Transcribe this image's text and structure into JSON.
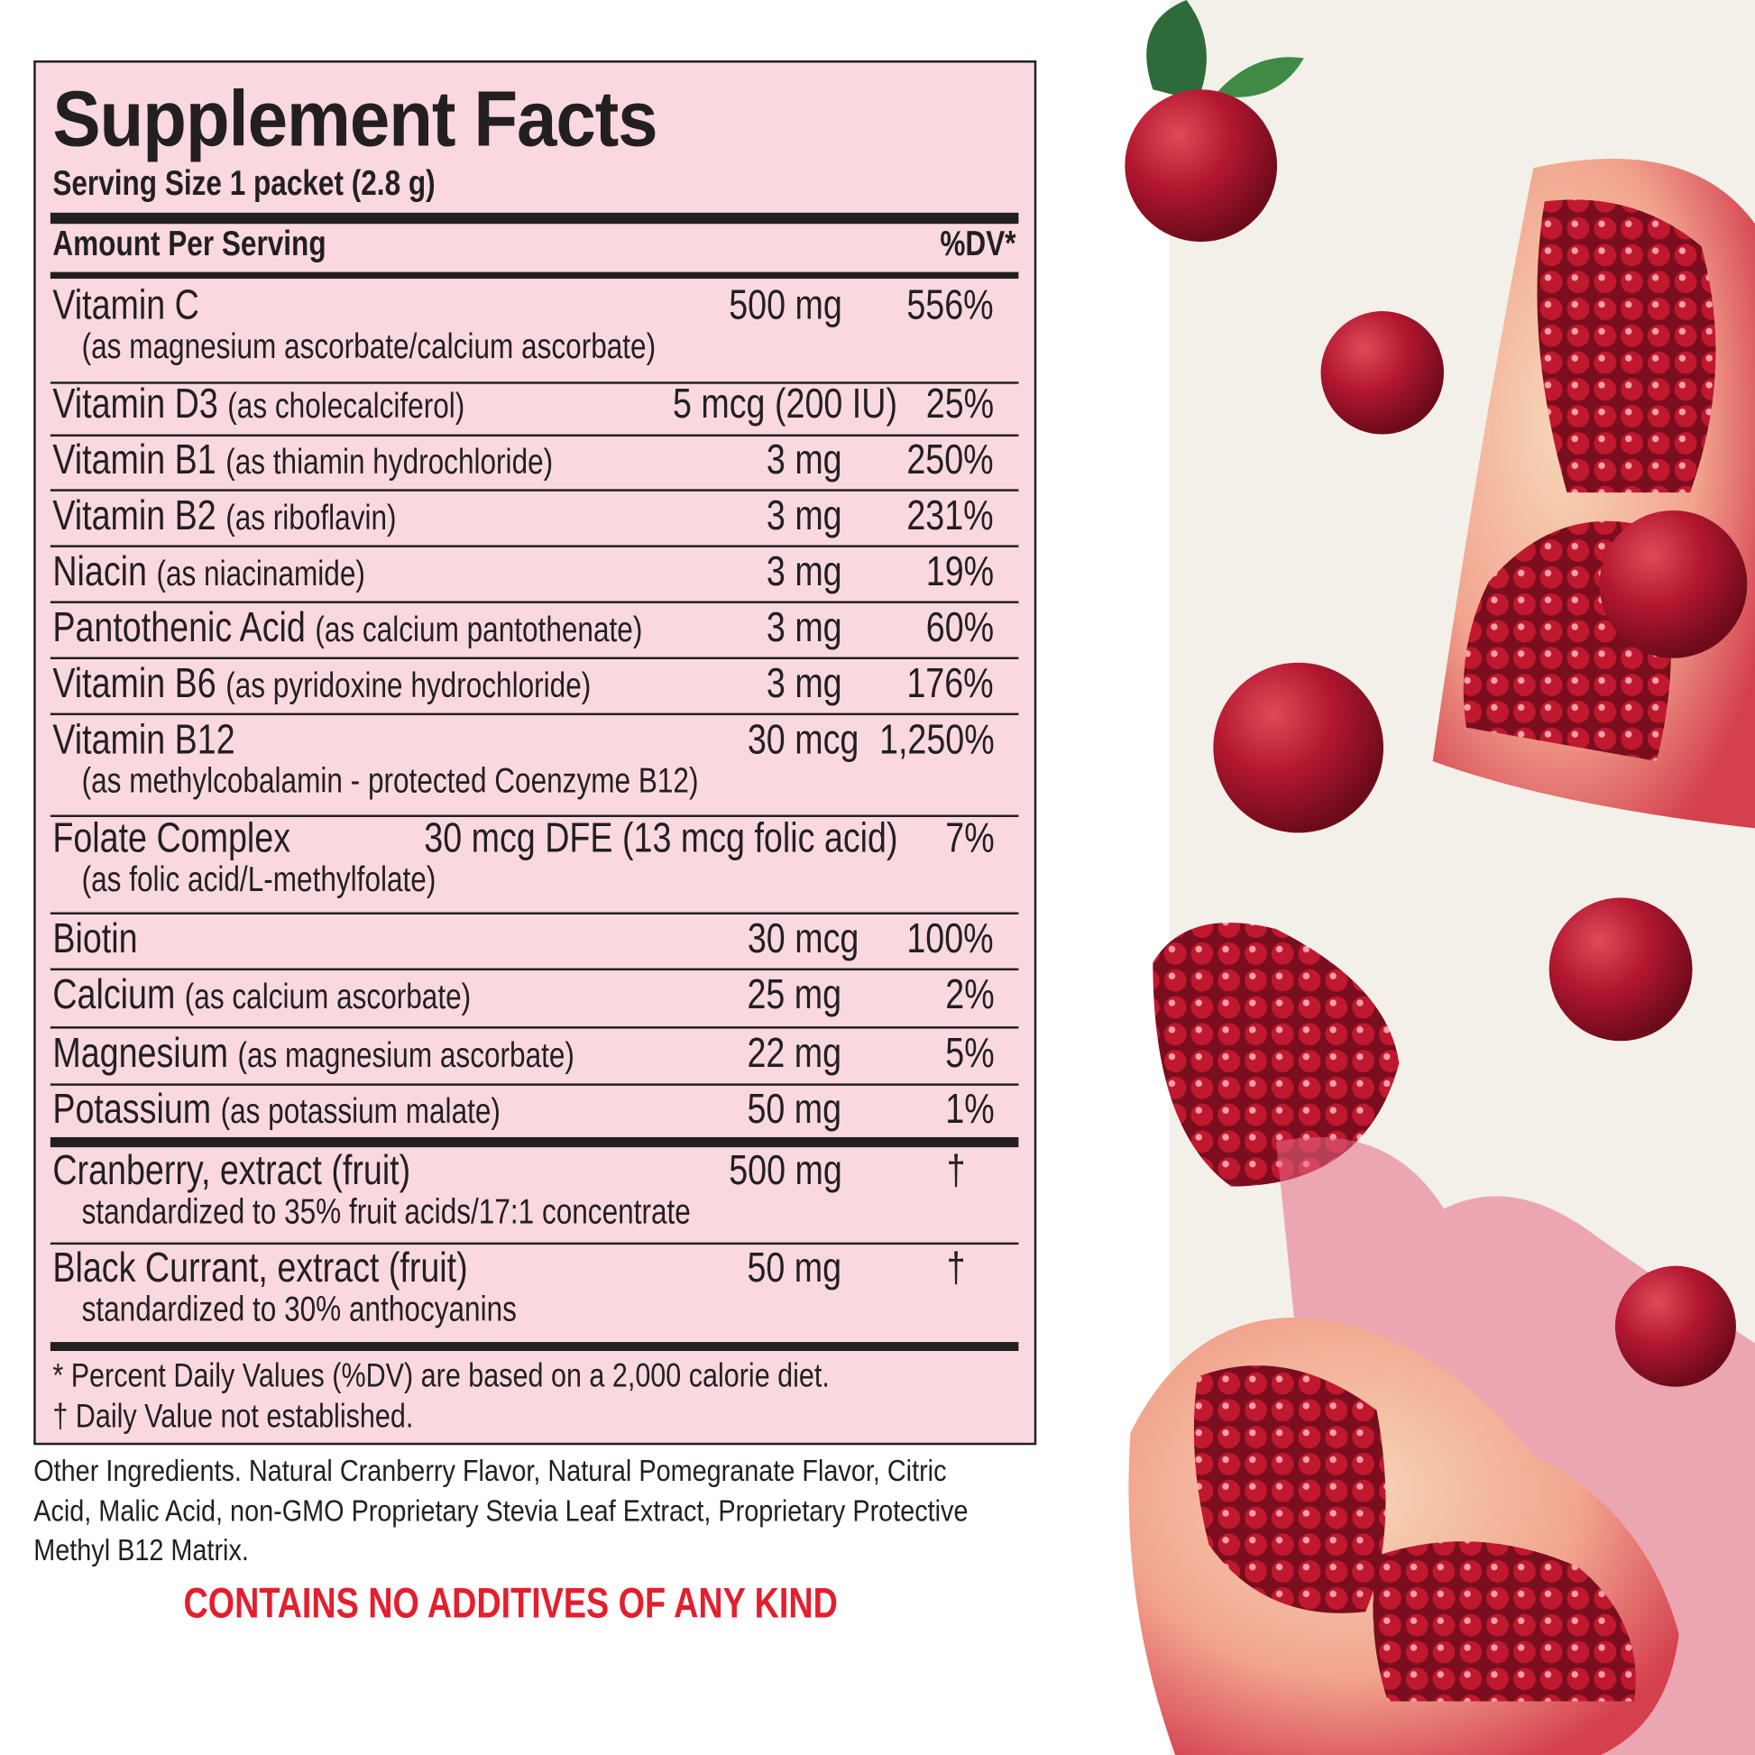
{
  "panel": {
    "title": "Supplement Facts",
    "serving_size": "Serving Size 1 packet (2.8 g)",
    "amount_header": "Amount Per Serving",
    "dv_header": "%DV*"
  },
  "nutrients": [
    {
      "name": "Vitamin C",
      "detail": "",
      "sub": "(as magnesium ascorbate/calcium ascorbate)",
      "amount": "500 mg",
      "dv": "556%"
    },
    {
      "name": "Vitamin D3",
      "detail": "(as cholecalciferol)",
      "sub": "",
      "amount": "5 mcg (200 IU)",
      "dv": "25%"
    },
    {
      "name": "Vitamin B1",
      "detail": "(as thiamin hydrochloride)",
      "sub": "",
      "amount": "3 mg",
      "dv": "250%"
    },
    {
      "name": "Vitamin B2",
      "detail": "(as riboflavin)",
      "sub": "",
      "amount": "3 mg",
      "dv": "231%"
    },
    {
      "name": "Niacin",
      "detail": "(as niacinamide)",
      "sub": "",
      "amount": "3 mg",
      "dv": "19%"
    },
    {
      "name": "Pantothenic Acid",
      "detail": "(as calcium pantothenate)",
      "sub": "",
      "amount": "3 mg",
      "dv": "60%"
    },
    {
      "name": "Vitamin B6",
      "detail": "(as pyridoxine hydrochloride)",
      "sub": "",
      "amount": "3 mg",
      "dv": "176%"
    },
    {
      "name": "Vitamin B12",
      "detail": "",
      "sub": "(as methylcobalamin - protected Coenzyme B12)",
      "amount": "30 mcg",
      "dv": "1,250%"
    },
    {
      "name": "Folate Complex",
      "detail": "",
      "sub": "(as folic acid/L-methylfolate)",
      "amount": "30 mcg DFE (13 mcg folic acid)",
      "dv": "7%"
    },
    {
      "name": "Biotin",
      "detail": "",
      "sub": "",
      "amount": "30 mcg",
      "dv": "100%"
    },
    {
      "name": "Calcium",
      "detail": "(as calcium ascorbate)",
      "sub": "",
      "amount": "25 mg",
      "dv": "2%"
    },
    {
      "name": "Magnesium",
      "detail": "(as magnesium ascorbate)",
      "sub": "",
      "amount": "22 mg",
      "dv": "5%"
    },
    {
      "name": "Potassium",
      "detail": "(as potassium malate)",
      "sub": "",
      "amount": "50 mg",
      "dv": "1%"
    }
  ],
  "extracts": [
    {
      "name": "Cranberry, extract (fruit)",
      "sub": "standardized to 35% fruit acids/17:1 concentrate",
      "amount": "500 mg",
      "dv": "†"
    },
    {
      "name": "Black Currant, extract (fruit)",
      "sub": "standardized to 30% anthocyanins",
      "amount": "50 mg",
      "dv": "†"
    }
  ],
  "footnotes": [
    "* Percent Daily Values (%DV) are based on a 2,000 calorie diet.",
    "† Daily Value not established."
  ],
  "other_ingredients": [
    "Other Ingredients. Natural Cranberry Flavor, Natural Pomegranate Flavor, Citric",
    "Acid, Malic Acid, non-GMO Proprietary Stevia Leaf Extract, Proprietary Protective",
    "Methyl B12 Matrix."
  ],
  "contains_notice": "CONTAINS NO ADDITIVES OF ANY KIND",
  "colors": {
    "panel_bg": "#f9d9df",
    "text": "#231f20",
    "notice_red": "#e31e2d",
    "art_bg": "#f3f0ea",
    "cranberry": "#b3172f"
  },
  "artwork": "cranberries-and-pomegranates-illustration"
}
